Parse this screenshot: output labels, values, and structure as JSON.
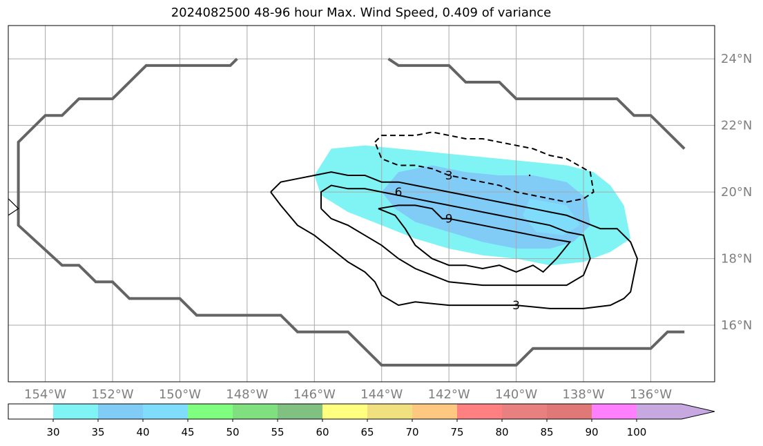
{
  "title": "2024082500 48-96 hour Max. Wind Speed, 0.409 of variance",
  "map": {
    "lon_range": [
      -155.1,
      -134.1
    ],
    "lat_range": [
      14.3,
      25.0
    ],
    "lon_ticks": [
      -154,
      -152,
      -150,
      -148,
      -146,
      -144,
      -142,
      -140,
      -138,
      -136
    ],
    "lon_tick_labels": [
      "154°W",
      "152°W",
      "150°W",
      "148°W",
      "146°W",
      "144°W",
      "142°W",
      "140°W",
      "138°W",
      "136°W"
    ],
    "lat_ticks": [
      16,
      18,
      20,
      22,
      24
    ],
    "lat_tick_labels": [
      "16°N",
      "18°N",
      "20°N",
      "22°N",
      "24°N"
    ],
    "grid": true,
    "label_color": "#7f7f7f",
    "cone_color": "#646464",
    "cone_outline": [
      [
        -148.3,
        24.0
      ],
      [
        -148.5,
        23.8
      ],
      [
        -151.0,
        23.8
      ],
      [
        -152.0,
        22.8
      ],
      [
        -153.0,
        22.8
      ],
      [
        -153.5,
        22.3
      ],
      [
        -154.0,
        22.3
      ],
      [
        -154.8,
        21.5
      ],
      [
        -154.8,
        19.0
      ],
      [
        -153.5,
        17.8
      ],
      [
        -153.0,
        17.8
      ],
      [
        -152.5,
        17.3
      ],
      [
        -152.0,
        17.3
      ],
      [
        -151.5,
        16.8
      ],
      [
        -150.0,
        16.8
      ],
      [
        -149.5,
        16.3
      ],
      [
        -147.0,
        16.3
      ],
      [
        -146.5,
        15.8
      ],
      [
        -145.0,
        15.8
      ],
      [
        -144.0,
        14.8
      ],
      [
        -140.0,
        14.8
      ],
      [
        -139.5,
        15.3
      ],
      [
        -136.0,
        15.3
      ],
      [
        -135.5,
        15.8
      ],
      [
        -135.0,
        15.8
      ]
    ],
    "cone_outline_north_east": [
      [
        -143.8,
        24.0
      ],
      [
        -143.5,
        23.8
      ],
      [
        -142.0,
        23.8
      ],
      [
        -141.5,
        23.3
      ],
      [
        -140.5,
        23.3
      ],
      [
        -140.0,
        22.8
      ],
      [
        -137.0,
        22.8
      ],
      [
        -136.5,
        22.3
      ],
      [
        -136.0,
        22.3
      ],
      [
        -135.0,
        21.3
      ]
    ],
    "coastline": [
      [
        -155.1,
        19.8
      ],
      [
        -154.8,
        19.5
      ],
      [
        -155.1,
        19.3
      ]
    ],
    "shading": [
      {
        "level": "30-35",
        "color": "#80f4f4",
        "polygon": [
          [
            -146.0,
            20.5
          ],
          [
            -145.5,
            21.3
          ],
          [
            -144.5,
            21.4
          ],
          [
            -143.5,
            21.3
          ],
          [
            -142.5,
            21.2
          ],
          [
            -141.5,
            21.1
          ],
          [
            -140.5,
            21.0
          ],
          [
            -139.5,
            20.9
          ],
          [
            -138.5,
            20.8
          ],
          [
            -137.7,
            20.6
          ],
          [
            -137.2,
            20.2
          ],
          [
            -136.8,
            19.6
          ],
          [
            -136.6,
            18.6
          ],
          [
            -137.2,
            18.2
          ],
          [
            -138.0,
            17.9
          ],
          [
            -139.0,
            17.8
          ],
          [
            -140.0,
            18.0
          ],
          [
            -141.0,
            18.1
          ],
          [
            -142.0,
            18.3
          ],
          [
            -143.0,
            18.6
          ],
          [
            -144.0,
            19.0
          ],
          [
            -145.0,
            19.4
          ],
          [
            -145.8,
            19.9
          ]
        ]
      },
      {
        "level": "35-40",
        "color": "#80ccf7",
        "polygon": [
          [
            -143.5,
            20.6
          ],
          [
            -142.5,
            20.8
          ],
          [
            -141.5,
            20.6
          ],
          [
            -140.5,
            20.5
          ],
          [
            -139.5,
            20.5
          ],
          [
            -138.5,
            20.3
          ],
          [
            -137.9,
            19.8
          ],
          [
            -137.8,
            19.0
          ],
          [
            -138.3,
            18.5
          ],
          [
            -139.0,
            18.3
          ],
          [
            -140.0,
            18.3
          ],
          [
            -141.0,
            18.5
          ],
          [
            -142.0,
            18.8
          ],
          [
            -143.0,
            19.1
          ],
          [
            -143.6,
            19.5
          ],
          [
            -144.0,
            20.0
          ]
        ]
      },
      {
        "level": "40-45",
        "color": "#7fdcfa",
        "polygon": [
          [
            -139.6,
            19.8
          ],
          [
            -138.5,
            19.6
          ],
          [
            -138.1,
            19.0
          ],
          [
            -138.6,
            18.7
          ],
          [
            -139.4,
            18.8
          ],
          [
            -139.8,
            19.3
          ]
        ]
      }
    ],
    "contours": [
      {
        "level": 3,
        "style": "solid",
        "points": [
          [
            -147.3,
            20.0
          ],
          [
            -147.0,
            20.3
          ],
          [
            -146.5,
            20.4
          ],
          [
            -146.0,
            20.5
          ],
          [
            -145.5,
            20.6
          ],
          [
            -145.0,
            20.5
          ],
          [
            -144.5,
            20.5
          ],
          [
            -144.0,
            20.3
          ],
          [
            -143.5,
            20.3
          ],
          [
            -143.0,
            20.2
          ],
          [
            -142.5,
            20.1
          ],
          [
            -142.0,
            20.0
          ],
          [
            -141.5,
            19.9
          ],
          [
            -141.0,
            19.8
          ],
          [
            -140.5,
            19.7
          ],
          [
            -140.0,
            19.6
          ],
          [
            -139.5,
            19.5
          ],
          [
            -139.0,
            19.4
          ],
          [
            -138.5,
            19.3
          ],
          [
            -138.0,
            19.1
          ],
          [
            -137.5,
            18.9
          ],
          [
            -137.0,
            18.9
          ],
          [
            -136.6,
            18.5
          ],
          [
            -136.4,
            18.0
          ],
          [
            -136.6,
            17.0
          ],
          [
            -136.8,
            16.8
          ],
          [
            -137.2,
            16.6
          ],
          [
            -138.0,
            16.5
          ],
          [
            -139.0,
            16.5
          ],
          [
            -140.0,
            16.6
          ],
          [
            -141.0,
            16.6
          ],
          [
            -142.0,
            16.6
          ],
          [
            -143.0,
            16.7
          ],
          [
            -143.5,
            16.6
          ],
          [
            -144.0,
            16.9
          ],
          [
            -144.2,
            17.3
          ],
          [
            -144.5,
            17.6
          ],
          [
            -145.0,
            17.9
          ],
          [
            -145.5,
            18.3
          ],
          [
            -146.0,
            18.7
          ],
          [
            -146.5,
            19.0
          ],
          [
            -147.0,
            19.6
          ],
          [
            -147.3,
            20.0
          ]
        ],
        "label": "3",
        "label_at": [
          -140.0,
          16.6
        ]
      },
      {
        "level": 3,
        "style": "dashed",
        "points": [
          [
            -144.2,
            21.5
          ],
          [
            -144.0,
            21.7
          ],
          [
            -143.5,
            21.7
          ],
          [
            -143.0,
            21.7
          ],
          [
            -142.5,
            21.8
          ],
          [
            -142.0,
            21.7
          ],
          [
            -141.5,
            21.6
          ],
          [
            -141.0,
            21.6
          ],
          [
            -140.5,
            21.5
          ],
          [
            -140.0,
            21.4
          ],
          [
            -139.5,
            21.3
          ],
          [
            -139.0,
            21.1
          ],
          [
            -138.5,
            21.0
          ],
          [
            -137.8,
            20.6
          ],
          [
            -137.7,
            20.0
          ],
          [
            -138.0,
            19.8
          ],
          [
            -138.5,
            19.7
          ],
          [
            -139.0,
            19.8
          ],
          [
            -139.5,
            19.9
          ],
          [
            -140.0,
            20.0
          ],
          [
            -140.5,
            20.2
          ],
          [
            -141.0,
            20.3
          ],
          [
            -141.5,
            20.4
          ],
          [
            -142.0,
            20.5
          ],
          [
            -142.5,
            20.7
          ],
          [
            -143.0,
            20.8
          ],
          [
            -143.5,
            20.8
          ],
          [
            -144.0,
            21.0
          ],
          [
            -144.2,
            21.5
          ]
        ],
        "label": "3",
        "label_at": [
          -142.0,
          20.5
        ]
      },
      {
        "level": 6,
        "style": "solid",
        "points": [
          [
            -145.8,
            19.5
          ],
          [
            -145.8,
            20.0
          ],
          [
            -145.5,
            20.2
          ],
          [
            -145.0,
            20.1
          ],
          [
            -144.5,
            20.1
          ],
          [
            -144.0,
            20.0
          ],
          [
            -143.5,
            19.9
          ],
          [
            -143.0,
            19.8
          ],
          [
            -142.5,
            19.7
          ],
          [
            -142.0,
            19.6
          ],
          [
            -141.5,
            19.5
          ],
          [
            -141.0,
            19.4
          ],
          [
            -140.5,
            19.3
          ],
          [
            -140.0,
            19.2
          ],
          [
            -139.5,
            19.1
          ],
          [
            -139.0,
            19.0
          ],
          [
            -138.5,
            18.8
          ],
          [
            -138.0,
            18.7
          ],
          [
            -137.8,
            18.0
          ],
          [
            -138.0,
            17.5
          ],
          [
            -138.5,
            17.2
          ],
          [
            -139.0,
            17.2
          ],
          [
            -140.0,
            17.2
          ],
          [
            -141.0,
            17.2
          ],
          [
            -142.0,
            17.3
          ],
          [
            -142.5,
            17.5
          ],
          [
            -143.0,
            17.7
          ],
          [
            -143.5,
            18.0
          ],
          [
            -144.0,
            18.4
          ],
          [
            -144.5,
            18.7
          ],
          [
            -145.0,
            19.0
          ],
          [
            -145.5,
            19.2
          ],
          [
            -145.8,
            19.5
          ]
        ],
        "label": "6",
        "label_at": [
          -143.5,
          20.0
        ]
      },
      {
        "level": 9,
        "style": "solid",
        "points": [
          [
            -144.1,
            19.5
          ],
          [
            -143.5,
            19.6
          ],
          [
            -143.0,
            19.6
          ],
          [
            -142.5,
            19.5
          ],
          [
            -142.2,
            19.2
          ],
          [
            -142.0,
            19.2
          ],
          [
            -141.5,
            19.1
          ],
          [
            -141.0,
            19.0
          ],
          [
            -140.5,
            18.9
          ],
          [
            -140.0,
            18.8
          ],
          [
            -139.5,
            18.7
          ],
          [
            -139.0,
            18.6
          ],
          [
            -138.4,
            18.5
          ],
          [
            -138.8,
            18.0
          ],
          [
            -139.2,
            17.6
          ],
          [
            -139.5,
            17.8
          ],
          [
            -140.0,
            17.6
          ],
          [
            -140.5,
            17.8
          ],
          [
            -141.0,
            17.7
          ],
          [
            -141.5,
            17.8
          ],
          [
            -142.0,
            17.8
          ],
          [
            -142.5,
            18.0
          ],
          [
            -143.0,
            18.4
          ],
          [
            -143.3,
            18.9
          ],
          [
            -143.6,
            19.3
          ],
          [
            -144.1,
            19.5
          ]
        ],
        "label": "9",
        "label_at": [
          -142.0,
          19.2
        ]
      }
    ],
    "stray_marks": [
      [
        -139.6,
        20.5
      ]
    ]
  },
  "colorbar": {
    "levels": [
      "30",
      "35",
      "40",
      "45",
      "50",
      "55",
      "60",
      "65",
      "70",
      "75",
      "80",
      "85",
      "90",
      "100"
    ],
    "colors": [
      "#ffffff",
      "#80f4f4",
      "#80ccf7",
      "#7fdcfa",
      "#80fe80",
      "#80e080",
      "#80c080",
      "#ffff80",
      "#f0e080",
      "#ffc880",
      "#ff8080",
      "#e88080",
      "#e07878",
      "#ff80ff",
      "#c8a8e0"
    ],
    "extend": "max"
  }
}
